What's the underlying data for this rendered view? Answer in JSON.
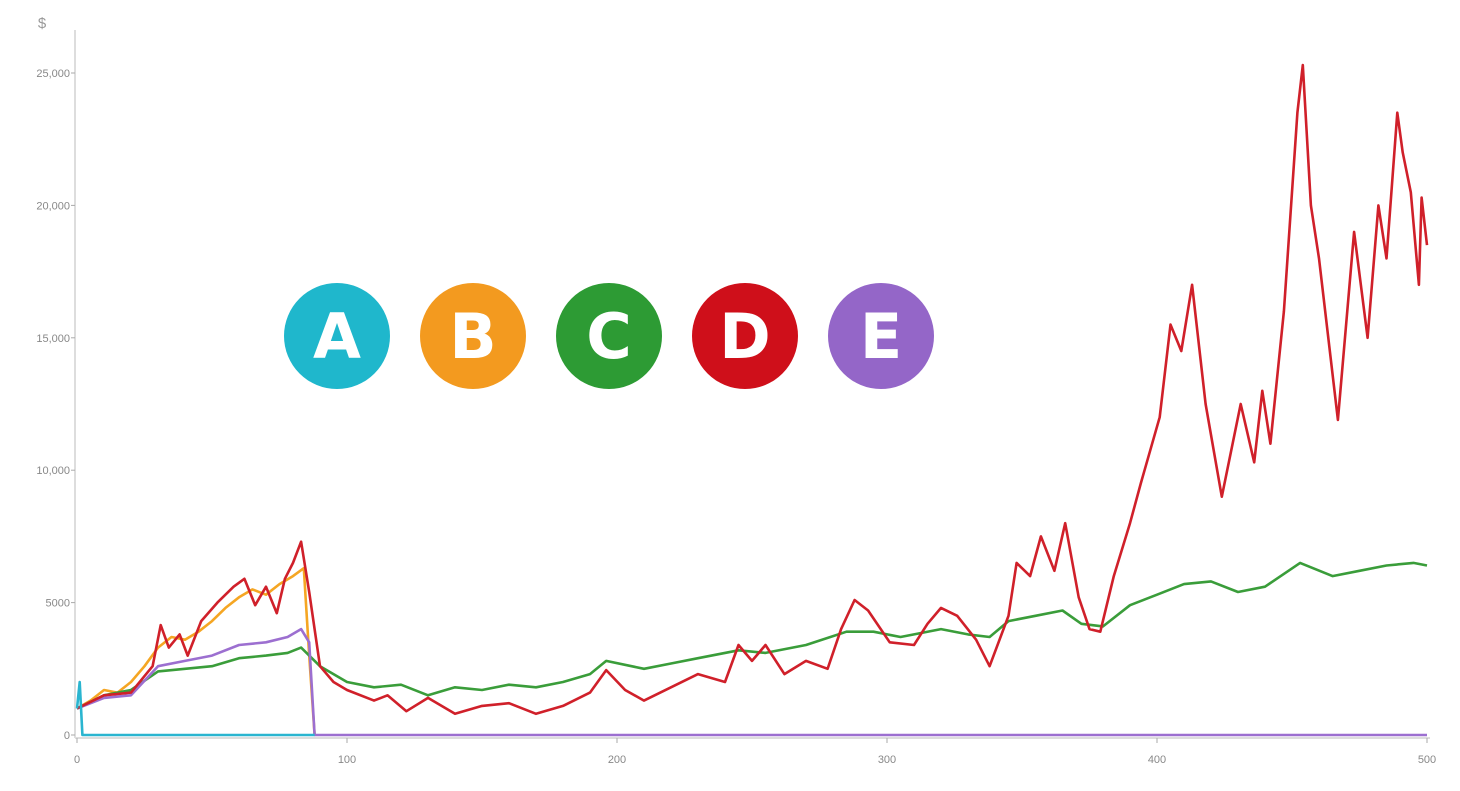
{
  "chart_data": {
    "type": "line",
    "title": "",
    "xlabel": "",
    "ylabel": "$",
    "xlim": [
      0,
      500
    ],
    "ylim": [
      0,
      26000
    ],
    "x_ticks": [
      0,
      100,
      200,
      300,
      400,
      500
    ],
    "x_tick_labels": [
      "0",
      "100",
      "200",
      "300",
      "400",
      "500"
    ],
    "y_ticks": [
      0,
      5000,
      10000,
      15000,
      20000,
      25000
    ],
    "y_tick_labels": [
      "0",
      "5000",
      "10,000",
      "15,000",
      "20,000",
      "25,000"
    ],
    "grid": false,
    "legend": {
      "placement": "upper-left-center",
      "entries": [
        {
          "name": "A",
          "color": "#1fb7cc"
        },
        {
          "name": "B",
          "color": "#f39a1f"
        },
        {
          "name": "C",
          "color": "#2d9b34"
        },
        {
          "name": "D",
          "color": "#cf0f1a"
        },
        {
          "name": "E",
          "color": "#9466c8"
        }
      ]
    },
    "series": [
      {
        "name": "A",
        "color": "#2ab5d0",
        "x": [
          0,
          1,
          2,
          88
        ],
        "y": [
          1000,
          2000,
          0,
          0
        ]
      },
      {
        "name": "B",
        "color": "#f5a623",
        "x": [
          0,
          5,
          10,
          15,
          20,
          25,
          30,
          35,
          40,
          45,
          50,
          55,
          60,
          65,
          70,
          75,
          80,
          84,
          86,
          88
        ],
        "y": [
          1000,
          1300,
          1700,
          1600,
          2000,
          2600,
          3300,
          3700,
          3600,
          3900,
          4300,
          4800,
          5200,
          5500,
          5300,
          5700,
          6000,
          6300,
          3000,
          0
        ]
      },
      {
        "name": "C",
        "color": "#3a9d3a",
        "x": [
          0,
          10,
          20,
          30,
          40,
          50,
          60,
          70,
          78,
          83,
          90,
          100,
          110,
          120,
          130,
          140,
          150,
          160,
          170,
          180,
          190,
          196,
          210,
          220,
          230,
          245,
          255,
          270,
          285,
          295,
          305,
          320,
          330,
          338,
          345,
          355,
          365,
          372,
          380,
          390,
          400,
          410,
          420,
          430,
          440,
          453,
          465,
          475,
          485,
          495,
          500
        ],
        "y": [
          1000,
          1500,
          1700,
          2400,
          2500,
          2600,
          2900,
          3000,
          3100,
          3300,
          2600,
          2000,
          1800,
          1900,
          1500,
          1800,
          1700,
          1900,
          1800,
          2000,
          2300,
          2800,
          2500,
          2700,
          2900,
          3200,
          3100,
          3400,
          3900,
          3900,
          3700,
          4000,
          3800,
          3700,
          4300,
          4500,
          4700,
          4200,
          4100,
          4900,
          5300,
          5700,
          5800,
          5400,
          5600,
          6500,
          6000,
          6200,
          6400,
          6500,
          6400
        ]
      },
      {
        "name": "D",
        "color": "#d0202a",
        "x": [
          0,
          10,
          20,
          28,
          31,
          34,
          38,
          41,
          46,
          52,
          58,
          62,
          66,
          70,
          74,
          77,
          80,
          83,
          86,
          90,
          95,
          100,
          110,
          115,
          122,
          130,
          140,
          150,
          160,
          170,
          180,
          190,
          196,
          203,
          210,
          220,
          230,
          240,
          245,
          250,
          255,
          262,
          270,
          278,
          283,
          288,
          293,
          301,
          310,
          315,
          320,
          326,
          333,
          338,
          345,
          348,
          353,
          357,
          362,
          366,
          371,
          375,
          379,
          384,
          390,
          394,
          401,
          405,
          409,
          413,
          418,
          424,
          428,
          431,
          436,
          439,
          442,
          447,
          452,
          454,
          457,
          460,
          467,
          473,
          478,
          482,
          485,
          489,
          491,
          494,
          497,
          498,
          500
        ],
        "y": [
          1000,
          1500,
          1600,
          2600,
          4150,
          3300,
          3800,
          3000,
          4300,
          5000,
          5600,
          5900,
          4900,
          5600,
          4600,
          5900,
          6500,
          7300,
          5400,
          2600,
          2000,
          1700,
          1300,
          1500,
          900,
          1400,
          800,
          1100,
          1200,
          800,
          1100,
          1600,
          2450,
          1700,
          1300,
          1800,
          2300,
          2000,
          3400,
          2800,
          3400,
          2300,
          2800,
          2500,
          4000,
          5100,
          4700,
          3500,
          3400,
          4200,
          4800,
          4500,
          3600,
          2600,
          4500,
          6500,
          6000,
          7500,
          6200,
          8000,
          5200,
          4000,
          3900,
          6000,
          8000,
          9500,
          12000,
          15500,
          14500,
          17000,
          12500,
          9000,
          11000,
          12500,
          10300,
          13000,
          11000,
          16000,
          23500,
          25300,
          20000,
          18000,
          11900,
          19000,
          15000,
          20000,
          18000,
          23500,
          22000,
          20500,
          17000,
          20300,
          18500
        ]
      },
      {
        "name": "E",
        "color": "#9c6fd0",
        "x": [
          0,
          10,
          20,
          30,
          40,
          50,
          60,
          70,
          78,
          83,
          86,
          88,
          500
        ],
        "y": [
          1000,
          1400,
          1500,
          2600,
          2800,
          3000,
          3400,
          3500,
          3700,
          4000,
          3500,
          0,
          0
        ]
      }
    ]
  }
}
